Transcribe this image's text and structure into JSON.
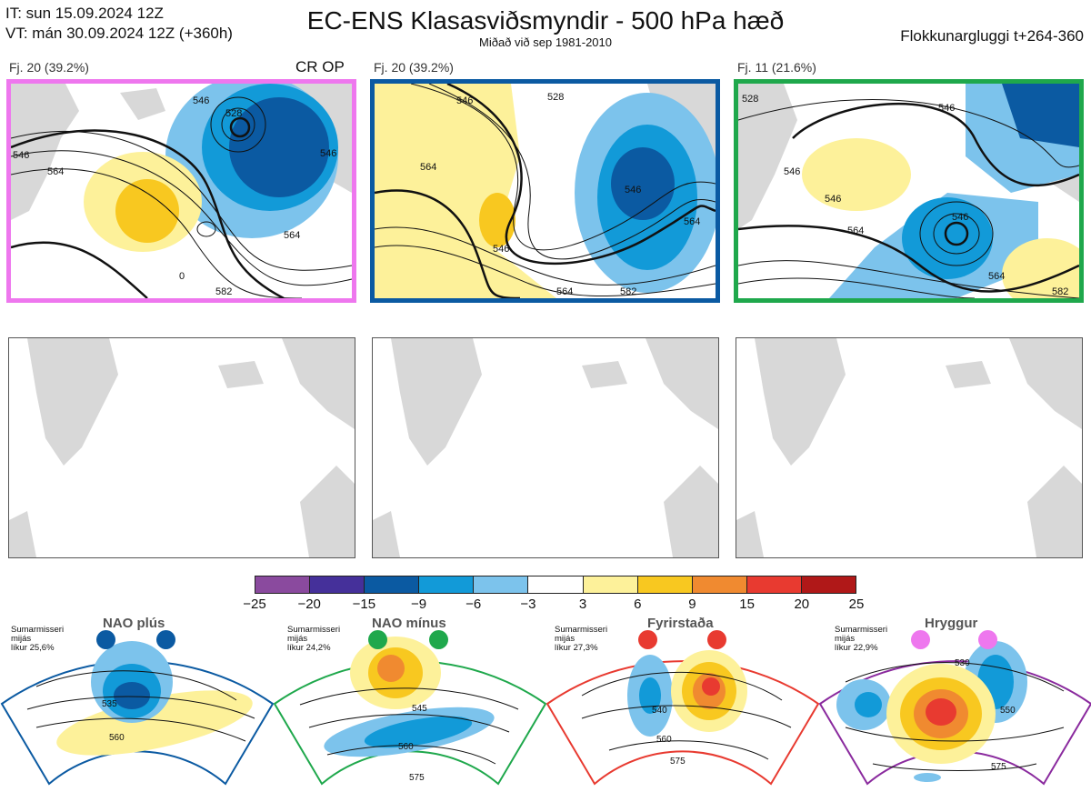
{
  "header": {
    "init_line": "IT: sun 15.09.2024 12Z",
    "valid_line": "VT: mán 30.09.2024 12Z  (+360h)",
    "title": "EC-ENS Klasasviðsmyndir - 500 hPa hæð",
    "subtitle": "Miðað við sep 1981-2010",
    "window": "Flokkunargluggi t+264-360"
  },
  "clusters": [
    {
      "label": "Fj. 20 (39.2%)",
      "border_color": "#ee77ee",
      "tag": "CR OP",
      "contour_labels": [
        "546",
        "528",
        "546",
        "564",
        "564",
        "582",
        "0",
        "546"
      ]
    },
    {
      "label": "Fj. 20 (39.2%)",
      "border_color": "#0b5aa2",
      "contour_labels": [
        "546",
        "528",
        "564",
        "546",
        "546",
        "564",
        "564",
        "582"
      ]
    },
    {
      "label": "Fj. 11 (21.6%)",
      "border_color": "#1fa84c",
      "contour_labels": [
        "528",
        "546",
        "546",
        "546",
        "564",
        "546",
        "564",
        "582"
      ]
    }
  ],
  "colorbar": {
    "colors": [
      "#8a4a9e",
      "#45309a",
      "#0b5aa2",
      "#129ad8",
      "#7cc3ec",
      "#ffffff",
      "#fdf19a",
      "#f8c820",
      "#f08a30",
      "#e83a30",
      "#b01818"
    ],
    "labels": [
      "−25",
      "−20",
      "−15",
      "−9",
      "−6",
      "−3",
      "3",
      "6",
      "9",
      "15",
      "20",
      "25"
    ]
  },
  "regimes": [
    {
      "name": "NAO plús",
      "color": "#0b5aa2",
      "season": "Sumarmisseri",
      "freq_label": "mijás",
      "prob": "líkur 25,6%",
      "contour_labels": [
        "535",
        "560"
      ]
    },
    {
      "name": "NAO mínus",
      "color": "#1fa84c",
      "season": "Sumarmisseri",
      "freq_label": "mijás",
      "prob": "líkur 24,2%",
      "contour_labels": [
        "545",
        "560",
        "575"
      ]
    },
    {
      "name": "Fyrirstaða",
      "color": "#e83a30",
      "season": "Sumarmisseri",
      "freq_label": "mijás",
      "prob": "líkur 27,3%",
      "contour_labels": [
        "540",
        "560",
        "575"
      ]
    },
    {
      "name": "Hryggur",
      "color": "#ee77ee",
      "season": "Sumarmisseri",
      "freq_label": "mijás",
      "prob": "líkur 22,9%",
      "contour_labels": [
        "530",
        "550",
        "575"
      ]
    }
  ]
}
